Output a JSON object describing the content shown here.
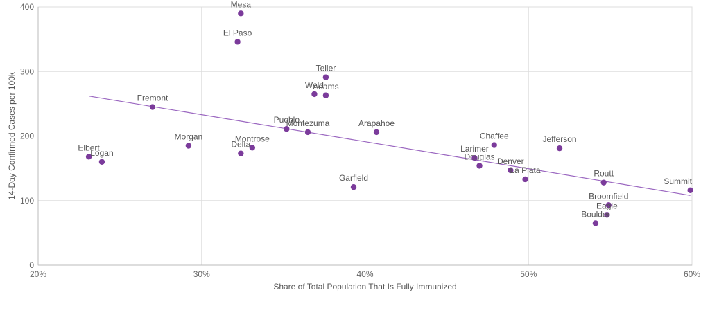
{
  "chart_data": {
    "type": "scatter",
    "xlabel": "Share of Total Population That Is Fully Immunized",
    "ylabel": "14-Day Confirmed Cases per 100k",
    "xlim": [
      20,
      60
    ],
    "ylim": [
      0,
      400
    ],
    "x_ticks": [
      20,
      30,
      40,
      50,
      60
    ],
    "x_tick_labels": [
      "20%",
      "30%",
      "40%",
      "50%",
      "60%"
    ],
    "y_ticks": [
      0,
      100,
      200,
      300,
      400
    ],
    "y_tick_labels": [
      "0",
      "100",
      "200",
      "300",
      "400"
    ],
    "grid": true,
    "point_color": "#7b3b9b",
    "trendline_color": "#9a66c0",
    "points": [
      {
        "label": "Mesa",
        "x": 32.4,
        "y": 390
      },
      {
        "label": "El Paso",
        "x": 32.2,
        "y": 346
      },
      {
        "label": "Teller",
        "x": 37.6,
        "y": 291
      },
      {
        "label": "Weld",
        "x": 36.9,
        "y": 265
      },
      {
        "label": "Adams",
        "x": 37.6,
        "y": 263
      },
      {
        "label": "Fremont",
        "x": 27.0,
        "y": 245
      },
      {
        "label": "Pueblo",
        "x": 35.2,
        "y": 211
      },
      {
        "label": "Montezuma",
        "x": 36.5,
        "y": 206
      },
      {
        "label": "Arapahoe",
        "x": 40.7,
        "y": 206
      },
      {
        "label": "Morgan",
        "x": 29.2,
        "y": 185
      },
      {
        "label": "Montrose",
        "x": 33.1,
        "y": 182
      },
      {
        "label": "Delta",
        "x": 32.4,
        "y": 173
      },
      {
        "label": "Elbert",
        "x": 23.1,
        "y": 168
      },
      {
        "label": "Logan",
        "x": 23.9,
        "y": 160
      },
      {
        "label": "Garfield",
        "x": 39.3,
        "y": 121
      },
      {
        "label": "Chaffee",
        "x": 47.9,
        "y": 186
      },
      {
        "label": "Jefferson",
        "x": 51.9,
        "y": 181
      },
      {
        "label": "Larimer",
        "x": 46.7,
        "y": 166
      },
      {
        "label": "Douglas",
        "x": 47.0,
        "y": 154
      },
      {
        "label": "Denver",
        "x": 48.9,
        "y": 147
      },
      {
        "label": "La Plata",
        "x": 49.8,
        "y": 133
      },
      {
        "label": "Routt",
        "x": 54.6,
        "y": 128
      },
      {
        "label": "Summit",
        "x": 59.9,
        "y": 116
      },
      {
        "label": "Broomfield",
        "x": 54.9,
        "y": 93
      },
      {
        "label": "Eagle",
        "x": 54.8,
        "y": 78
      },
      {
        "label": "Boulder",
        "x": 54.1,
        "y": 65
      }
    ],
    "trendline": {
      "x": [
        23.1,
        59.9
      ],
      "y": [
        262,
        108
      ]
    }
  }
}
